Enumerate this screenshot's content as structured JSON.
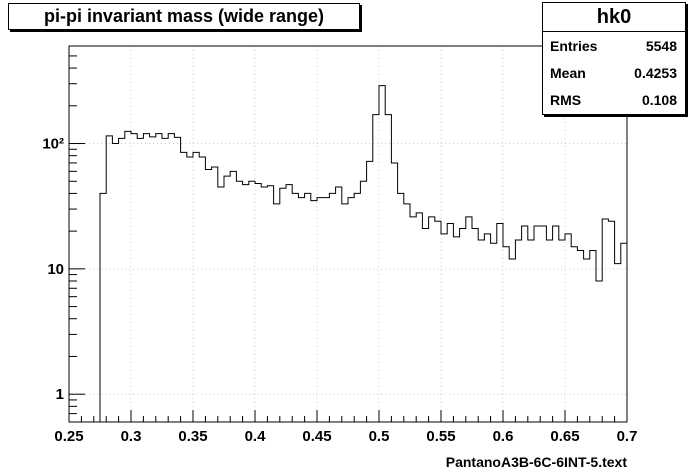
{
  "chart_data": {
    "type": "histogram",
    "title": "pi-pi invariant mass (wide range)",
    "xlabel": "PantanoA3B-6C-6INT-5.text",
    "ylabel": "",
    "xlim": [
      0.25,
      0.7
    ],
    "ylim": [
      0.6,
      600
    ],
    "y_scale": "log",
    "grid": true,
    "bin_width": 0.005,
    "x_ticks": [
      "0.25",
      "0.3",
      "0.35",
      "0.4",
      "0.45",
      "0.5",
      "0.55",
      "0.6",
      "0.65",
      "0.7"
    ],
    "y_ticks": [
      {
        "value": 1,
        "label": "1"
      },
      {
        "value": 10,
        "label": "10"
      },
      {
        "value": 100,
        "label": "10²"
      }
    ],
    "bins": [
      {
        "x": 0.275,
        "y": 40
      },
      {
        "x": 0.28,
        "y": 115
      },
      {
        "x": 0.285,
        "y": 100
      },
      {
        "x": 0.29,
        "y": 110
      },
      {
        "x": 0.295,
        "y": 125
      },
      {
        "x": 0.3,
        "y": 120
      },
      {
        "x": 0.305,
        "y": 110
      },
      {
        "x": 0.31,
        "y": 120
      },
      {
        "x": 0.315,
        "y": 113
      },
      {
        "x": 0.32,
        "y": 120
      },
      {
        "x": 0.325,
        "y": 110
      },
      {
        "x": 0.33,
        "y": 120
      },
      {
        "x": 0.335,
        "y": 112
      },
      {
        "x": 0.34,
        "y": 85
      },
      {
        "x": 0.345,
        "y": 78
      },
      {
        "x": 0.35,
        "y": 85
      },
      {
        "x": 0.355,
        "y": 78
      },
      {
        "x": 0.36,
        "y": 62
      },
      {
        "x": 0.365,
        "y": 65
      },
      {
        "x": 0.37,
        "y": 45
      },
      {
        "x": 0.375,
        "y": 55
      },
      {
        "x": 0.38,
        "y": 60
      },
      {
        "x": 0.385,
        "y": 50
      },
      {
        "x": 0.39,
        "y": 47
      },
      {
        "x": 0.395,
        "y": 50
      },
      {
        "x": 0.4,
        "y": 48
      },
      {
        "x": 0.405,
        "y": 45
      },
      {
        "x": 0.41,
        "y": 46
      },
      {
        "x": 0.415,
        "y": 33
      },
      {
        "x": 0.42,
        "y": 44
      },
      {
        "x": 0.425,
        "y": 47
      },
      {
        "x": 0.43,
        "y": 40
      },
      {
        "x": 0.435,
        "y": 37
      },
      {
        "x": 0.44,
        "y": 40
      },
      {
        "x": 0.445,
        "y": 35
      },
      {
        "x": 0.45,
        "y": 37
      },
      {
        "x": 0.455,
        "y": 37
      },
      {
        "x": 0.46,
        "y": 40
      },
      {
        "x": 0.465,
        "y": 45
      },
      {
        "x": 0.47,
        "y": 33
      },
      {
        "x": 0.475,
        "y": 37
      },
      {
        "x": 0.48,
        "y": 40
      },
      {
        "x": 0.485,
        "y": 50
      },
      {
        "x": 0.49,
        "y": 72
      },
      {
        "x": 0.495,
        "y": 170
      },
      {
        "x": 0.5,
        "y": 290
      },
      {
        "x": 0.505,
        "y": 170
      },
      {
        "x": 0.51,
        "y": 70
      },
      {
        "x": 0.515,
        "y": 40
      },
      {
        "x": 0.52,
        "y": 33
      },
      {
        "x": 0.525,
        "y": 26
      },
      {
        "x": 0.53,
        "y": 28
      },
      {
        "x": 0.535,
        "y": 21
      },
      {
        "x": 0.54,
        "y": 26
      },
      {
        "x": 0.545,
        "y": 24
      },
      {
        "x": 0.55,
        "y": 19
      },
      {
        "x": 0.555,
        "y": 23
      },
      {
        "x": 0.56,
        "y": 18
      },
      {
        "x": 0.565,
        "y": 21
      },
      {
        "x": 0.57,
        "y": 26
      },
      {
        "x": 0.575,
        "y": 21
      },
      {
        "x": 0.58,
        "y": 17
      },
      {
        "x": 0.585,
        "y": 19
      },
      {
        "x": 0.59,
        "y": 16
      },
      {
        "x": 0.595,
        "y": 23
      },
      {
        "x": 0.6,
        "y": 15
      },
      {
        "x": 0.605,
        "y": 12
      },
      {
        "x": 0.61,
        "y": 17
      },
      {
        "x": 0.615,
        "y": 22
      },
      {
        "x": 0.62,
        "y": 17
      },
      {
        "x": 0.625,
        "y": 22
      },
      {
        "x": 0.63,
        "y": 22
      },
      {
        "x": 0.635,
        "y": 17
      },
      {
        "x": 0.64,
        "y": 22
      },
      {
        "x": 0.645,
        "y": 17
      },
      {
        "x": 0.65,
        "y": 19
      },
      {
        "x": 0.655,
        "y": 15
      },
      {
        "x": 0.66,
        "y": 14
      },
      {
        "x": 0.665,
        "y": 12
      },
      {
        "x": 0.67,
        "y": 14
      },
      {
        "x": 0.675,
        "y": 8
      },
      {
        "x": 0.68,
        "y": 25
      },
      {
        "x": 0.685,
        "y": 24
      },
      {
        "x": 0.69,
        "y": 11
      },
      {
        "x": 0.695,
        "y": 16
      }
    ],
    "stats": {
      "name": "hk0",
      "entries_label": "Entries",
      "entries": "5548",
      "mean_label": "Mean",
      "mean": "0.4253",
      "rms_label": "RMS",
      "rms": "0.108"
    }
  }
}
